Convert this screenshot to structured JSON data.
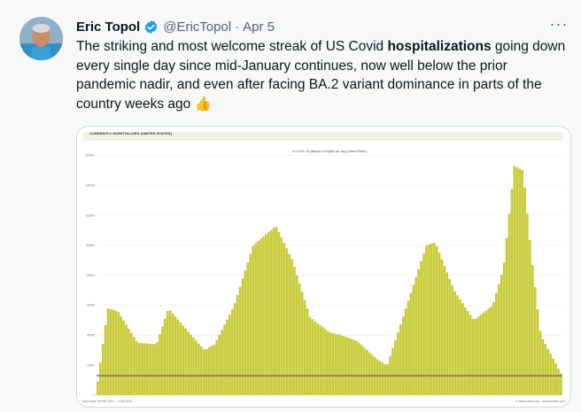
{
  "tweet": {
    "author_name": "Eric Topol",
    "handle": "@EricTopol",
    "separator": "·",
    "date": "Apr 5",
    "more_label": "···",
    "text_before": "The striking and most welcome streak of US Covid ",
    "text_bold": "hospitalizations",
    "text_after": " going down every single day since mid-January continues, now well below the prior pandemic nadir, and even after facing BA.2 variant dominance in parts of the country weeks ago",
    "emoji": "👍"
  },
  "colors": {
    "verified": "#1d9bf0",
    "bars": "#c8cc3a",
    "line": "#8a5a8a",
    "text": "#0f1419",
    "muted": "#536471"
  },
  "icons": {
    "avatar": "avatar",
    "verified": "verified-badge-icon",
    "more": "more-icon"
  },
  "chart_data": {
    "type": "bar",
    "title": "CURRENTLY HOSPITALIZED (UNITED STATES)",
    "legend": "COVID-19 patients in hospital per day (United States)",
    "footer_left": "Data range: 28 Mar 2020 → 4 Apr 2022",
    "footer_right": "© mikescollins.com / worldometers.com",
    "ylim": [
      0,
      165000
    ],
    "yticks": [
      0,
      20000,
      40000,
      60000,
      80000,
      100000,
      120000,
      140000,
      160000
    ],
    "x": [
      "2020-03-28",
      "2020-04-15",
      "2020-05-01",
      "2020-06-01",
      "2020-07-01",
      "2020-07-20",
      "2020-08-15",
      "2020-09-15",
      "2020-10-01",
      "2020-11-01",
      "2020-12-01",
      "2021-01-06",
      "2021-02-01",
      "2021-03-01",
      "2021-04-01",
      "2021-04-20",
      "2021-05-15",
      "2021-06-15",
      "2021-07-01",
      "2021-08-01",
      "2021-09-01",
      "2021-09-15",
      "2021-10-15",
      "2021-11-15",
      "2021-12-15",
      "2022-01-01",
      "2022-01-18",
      "2022-02-01",
      "2022-02-15",
      "2022-03-01",
      "2022-04-04"
    ],
    "values": [
      3000,
      58000,
      56000,
      35000,
      34000,
      58000,
      45000,
      30000,
      34000,
      60000,
      100000,
      113000,
      90000,
      52000,
      42000,
      40000,
      36000,
      24000,
      20000,
      60000,
      100000,
      102000,
      70000,
      50000,
      60000,
      85000,
      153000,
      150000,
      90000,
      40000,
      13000
    ],
    "reference_line": 13000
  }
}
